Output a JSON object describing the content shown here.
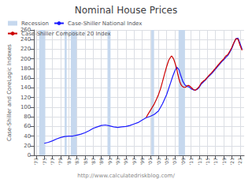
{
  "chart_data": {
    "type": "line",
    "title": "Nominal House Prices",
    "ylabel": "Case-Shiller and CoreLogic Indexes",
    "annotations": [
      "http://www.calculatedriskblog.com/"
    ],
    "grid": true,
    "legend": "upper left",
    "xlim": [
      1972.5,
      2024
    ],
    "xticks": [
      {
        "value": 1973,
        "label": "'73"
      },
      {
        "value": 1975,
        "label": "'75"
      },
      {
        "value": 1977,
        "label": "'77"
      },
      {
        "value": 1979,
        "label": "'79"
      },
      {
        "value": 1981,
        "label": "'81"
      },
      {
        "value": 1983,
        "label": "'83"
      },
      {
        "value": 1985,
        "label": "'85"
      },
      {
        "value": 1987,
        "label": "'87"
      },
      {
        "value": 1989,
        "label": "'89"
      },
      {
        "value": 1991,
        "label": "'91"
      },
      {
        "value": 1993,
        "label": "'93"
      },
      {
        "value": 1995,
        "label": "'95"
      },
      {
        "value": 1997,
        "label": "'97"
      },
      {
        "value": 1999,
        "label": "'99"
      },
      {
        "value": 2001,
        "label": "'01"
      },
      {
        "value": 2003,
        "label": "'03"
      },
      {
        "value": 2005,
        "label": "'05"
      },
      {
        "value": 2007,
        "label": "'07"
      },
      {
        "value": 2009,
        "label": "'09"
      },
      {
        "value": 2011,
        "label": "'11"
      },
      {
        "value": 2013,
        "label": "'13"
      },
      {
        "value": 2015,
        "label": "'15"
      },
      {
        "value": 2017,
        "label": "'17"
      },
      {
        "value": 2019,
        "label": "'19"
      },
      {
        "value": 2021,
        "label": "'21"
      },
      {
        "value": 2023,
        "label": "'23"
      }
    ],
    "ylim": [
      0,
      260
    ],
    "yticks": [
      0,
      20,
      40,
      60,
      80,
      100,
      120,
      140,
      160,
      180,
      200,
      220,
      240,
      260
    ],
    "recessions": {
      "name": "Recession",
      "color": "#c6d8ee",
      "spans": [
        [
          1973.75,
          1975.25
        ],
        [
          1980.0,
          1980.5
        ],
        [
          1981.5,
          1982.92
        ],
        [
          1990.5,
          1991.25
        ],
        [
          2001.25,
          2001.92
        ],
        [
          2007.92,
          2009.5
        ]
      ]
    },
    "series": [
      {
        "name": "Case-Shiller National Index",
        "color": "#1a1aff",
        "x": [
          1975.0,
          1976.0,
          1977.0,
          1978.0,
          1979.0,
          1980.0,
          1981.0,
          1982.0,
          1983.0,
          1984.0,
          1985.0,
          1986.0,
          1987.0,
          1988.0,
          1989.0,
          1990.0,
          1991.0,
          1992.0,
          1993.0,
          1994.0,
          1995.0,
          1996.0,
          1997.0,
          1998.0,
          1999.0,
          2000.0,
          2001.0,
          2002.0,
          2003.0,
          2004.0,
          2005.0,
          2006.0,
          2006.5,
          2007.0,
          2007.5,
          2008.0,
          2008.5,
          2009.0,
          2009.5,
          2010.0,
          2010.5,
          2011.0,
          2011.5,
          2012.0,
          2012.5,
          2013.0,
          2013.5,
          2014.0,
          2014.5,
          2015.0,
          2015.5,
          2016.0,
          2016.5,
          2017.0,
          2017.5,
          2018.0,
          2018.5,
          2019.0,
          2019.5,
          2020.0,
          2020.5,
          2021.0,
          2021.5,
          2022.0,
          2022.5,
          2023.0,
          2023.5
        ],
        "values": [
          25,
          27,
          30,
          34,
          37,
          39,
          40,
          40,
          42,
          44,
          47,
          51,
          56,
          59,
          62,
          63,
          61,
          59,
          58,
          59,
          60,
          62,
          65,
          68,
          73,
          78,
          81,
          85,
          92,
          107,
          126,
          151,
          164,
          175,
          183,
          178,
          165,
          153,
          146,
          143,
          142,
          138,
          136,
          135,
          137,
          141,
          148,
          152,
          156,
          161,
          165,
          169,
          174,
          179,
          184,
          189,
          194,
          198,
          203,
          207,
          214,
          222,
          233,
          242,
          243,
          232,
          220
        ]
      },
      {
        "name": "Case-Shiller Composite 20 Index",
        "color": "#cc0000",
        "x": [
          2000.0,
          2000.5,
          2001.0,
          2001.5,
          2002.0,
          2002.5,
          2003.0,
          2003.5,
          2004.0,
          2004.5,
          2005.0,
          2005.5,
          2006.0,
          2006.25,
          2006.5,
          2006.75,
          2007.0,
          2007.25,
          2007.5,
          2007.75,
          2008.0,
          2008.25,
          2008.5,
          2008.75,
          2009.0,
          2009.25,
          2009.5,
          2009.75,
          2010.0,
          2010.25,
          2010.5,
          2011.0,
          2011.5,
          2012.0,
          2012.5,
          2013.0,
          2013.5,
          2014.0,
          2014.5,
          2015.0,
          2015.5,
          2016.0,
          2016.5,
          2017.0,
          2017.5,
          2018.0,
          2018.5,
          2019.0,
          2019.5,
          2020.0,
          2020.5,
          2021.0,
          2021.5,
          2022.0,
          2022.5,
          2023.0,
          2023.5
        ],
        "values": [
          79,
          86,
          93,
          100,
          107,
          116,
          126,
          138,
          153,
          169,
          184,
          197,
          204,
          206,
          203,
          199,
          193,
          186,
          178,
          168,
          159,
          152,
          147,
          144,
          142,
          141,
          141,
          142,
          144,
          145,
          145,
          141,
          137,
          135,
          138,
          143,
          150,
          154,
          157,
          162,
          167,
          171,
          176,
          181,
          186,
          191,
          196,
          200,
          206,
          209,
          216,
          224,
          234,
          242,
          241,
          228,
          218
        ]
      }
    ]
  }
}
